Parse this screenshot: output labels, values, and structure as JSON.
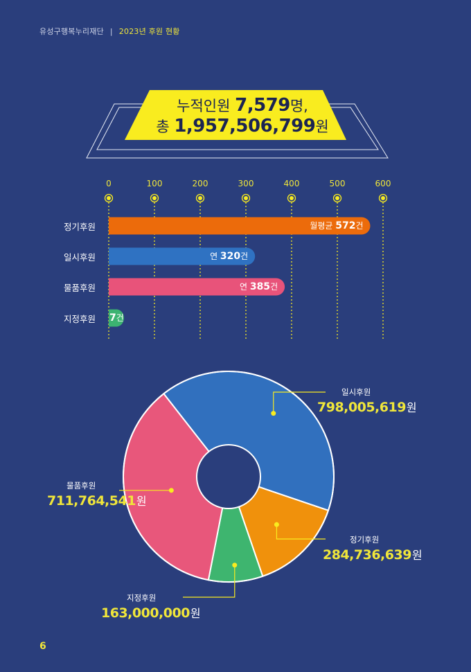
{
  "header": {
    "org": "유성구행복누리재단",
    "separator": "|",
    "section": "2023년 후원 현황"
  },
  "banner": {
    "line1_prefix": "누적인원 ",
    "line1_value": "7,579",
    "line1_suffix": "명,",
    "line2_prefix": "총 ",
    "line2_value": "1,957,506,799",
    "line2_suffix": "원"
  },
  "colors": {
    "background": "#2a3e7c",
    "accent_yellow": "#f9ec1f",
    "regular": "#ec6b0b",
    "onetime": "#2f72c2",
    "goods": "#e8537a",
    "designated": "#3cb371",
    "pie_regular": "#f0910c",
    "pie_onetime": "#3170be",
    "pie_goods": "#e8577b",
    "pie_designated": "#3eb56f"
  },
  "chart_data": [
    {
      "type": "bar",
      "orientation": "horizontal",
      "xlim": [
        0,
        600
      ],
      "ticks": [
        "0",
        "100",
        "200",
        "300",
        "400",
        "500",
        "600"
      ],
      "tick_values": [
        0,
        100,
        200,
        300,
        400,
        500,
        600
      ],
      "categories": [
        "정기후원",
        "일시후원",
        "물품후원",
        "지정후원"
      ],
      "values": [
        572,
        320,
        385,
        7
      ],
      "data_labels": [
        {
          "prefix": "월평균 ",
          "value": "572",
          "unit": "건"
        },
        {
          "prefix": "연 ",
          "value": "320",
          "unit": "건"
        },
        {
          "prefix": "연 ",
          "value": "385",
          "unit": "건"
        },
        {
          "prefix": "",
          "value": "7",
          "unit": "건"
        }
      ],
      "grid": true
    },
    {
      "type": "pie",
      "donut": true,
      "slices": [
        {
          "label": "일시후원",
          "value": 798005619,
          "display": "798,005,619",
          "unit": "원"
        },
        {
          "label": "정기후원",
          "value": 284736639,
          "display": "284,736,639",
          "unit": "원"
        },
        {
          "label": "지정후원",
          "value": 163000000,
          "display": "163,000,000",
          "unit": "원"
        },
        {
          "label": "물품후원",
          "value": 711764541,
          "display": "711,764,541",
          "unit": "원"
        }
      ]
    }
  ],
  "page_number": "6"
}
